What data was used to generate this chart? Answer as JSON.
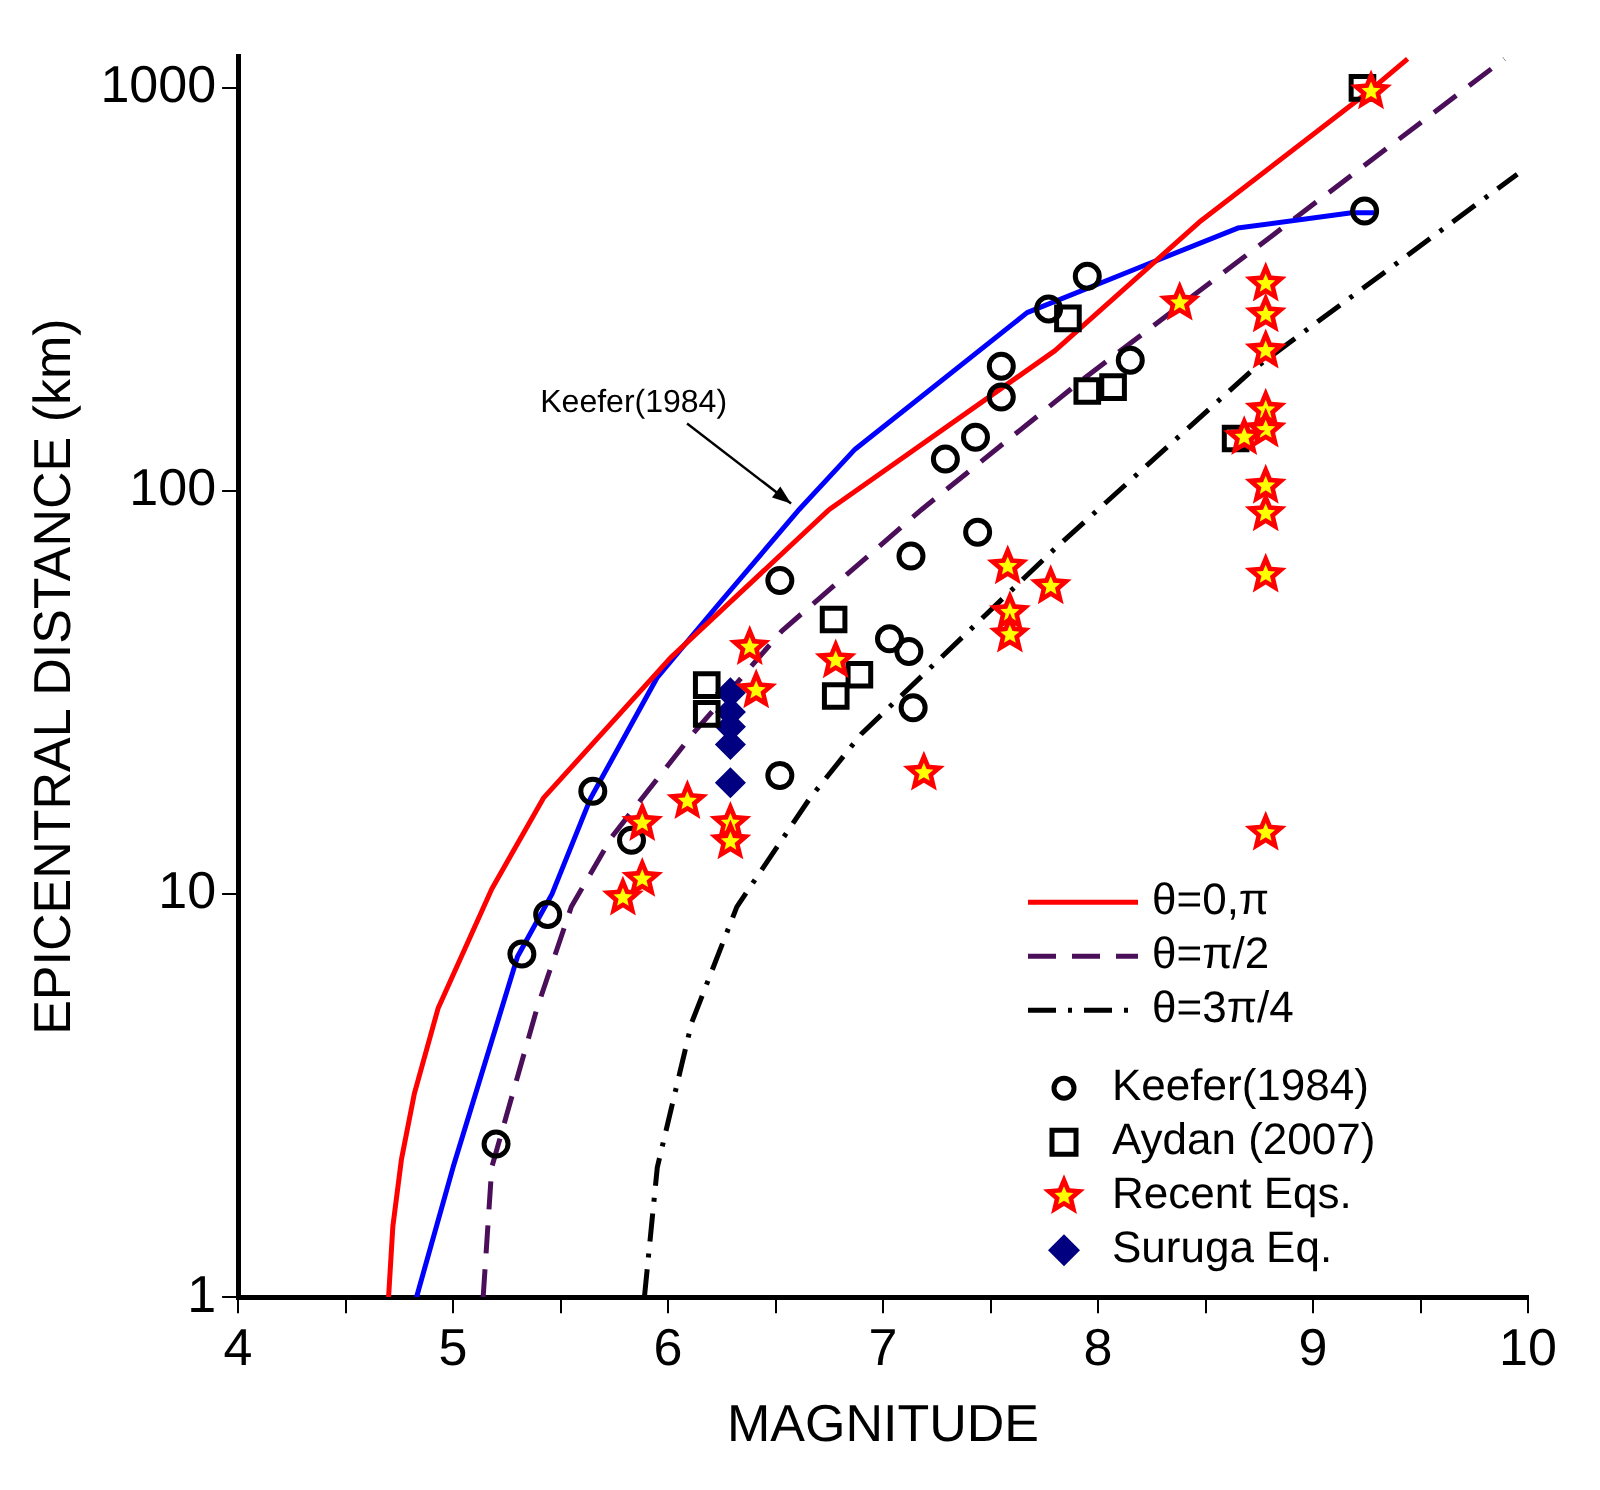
{
  "chart_data": {
    "type": "scatter",
    "xlabel": "MAGNITUDE",
    "ylabel": "EPICENTRAL DISTANCE (km)",
    "log": "y",
    "legend": "bottom right",
    "xlim": [
      4,
      10
    ],
    "ylim": [
      1,
      1200
    ],
    "xticks": [
      4,
      {
        "value": 4.5,
        "label": null
      },
      5,
      {
        "value": 5.5,
        "label": null
      },
      6,
      {
        "value": 6.5,
        "label": null
      },
      7,
      {
        "value": 7.5,
        "label": null
      },
      8,
      {
        "value": 8.5,
        "label": null
      },
      9,
      {
        "value": 9.5,
        "label": null
      },
      10
    ],
    "yticks": [
      1,
      10,
      100,
      1000
    ],
    "annotations": [
      {
        "text": "Keefer(1984)",
        "x": 6.6,
        "y": 90
      }
    ],
    "series": [
      {
        "name": "θ=0,π",
        "type": "line",
        "color": "#ff0000",
        "line_style": "solid",
        "marker": "none",
        "x": [
          4.7,
          4.72,
          4.76,
          4.82,
          4.93,
          5.18,
          5.42,
          6.01,
          6.75,
          7.8,
          8.47,
          9.27,
          9.44
        ],
        "values": [
          1,
          1.5,
          2.2,
          3.2,
          5.2,
          10.3,
          17.3,
          38.5,
          90,
          223,
          464,
          990,
          1180
        ]
      },
      {
        "type": "line",
        "color": "#0000ff",
        "line_style": "solid",
        "marker": "none",
        "x": [
          4.83,
          5.0,
          5.3,
          5.46,
          5.64,
          5.95,
          6.23,
          6.61,
          6.87,
          7.67,
          8.16,
          8.65,
          9.18,
          9.29
        ],
        "values": [
          1,
          2.1,
          7,
          10,
          17.3,
          34.5,
          52,
          90,
          127,
          277,
          353,
          449,
          490,
          490
        ]
      },
      {
        "name": "θ=π/2",
        "type": "line",
        "color": "#4b0f5a",
        "line_style": "dashed",
        "marker": "none",
        "x": [
          5.14,
          5.18,
          5.39,
          5.55,
          5.74,
          6.11,
          6.53,
          7.18,
          7.95,
          8.81,
          9.89
        ],
        "values": [
          1,
          2.1,
          5.2,
          9.3,
          13.9,
          24.8,
          45,
          90,
          193,
          430,
          1180
        ]
      },
      {
        "name": "θ=3π/4",
        "type": "line",
        "color": "#000000",
        "line_style": "dashdot",
        "marker": "none",
        "x": [
          5.89,
          5.95,
          6.11,
          6.32,
          6.66,
          6.9,
          7.8,
          8.72,
          9.95
        ],
        "values": [
          1,
          2.1,
          4.8,
          9.3,
          17.3,
          25,
          72,
          200,
          611
        ]
      },
      {
        "name": "Keefer(1984)",
        "color": "#000000",
        "marker": "circle",
        "x": [
          5.2,
          5.32,
          5.44,
          5.65,
          5.83,
          6.52,
          6.52,
          7.13,
          7.03,
          7.12,
          7.14,
          7.44,
          7.29,
          7.43,
          7.55,
          7.55,
          7.77,
          7.95,
          8.15,
          9.24
        ],
        "values": [
          2.4,
          7.1,
          8.9,
          18,
          13.6,
          19.7,
          60,
          69,
          43,
          40,
          29,
          79,
          120,
          136,
          171,
          204,
          283,
          341,
          211,
          495
        ]
      },
      {
        "name": "Aydan (2007)",
        "color": "#000000",
        "marker": "square",
        "x": [
          6.18,
          6.18,
          6.77,
          6.78,
          6.89,
          7.86,
          7.95,
          8.07,
          8.64,
          9.23
        ],
        "values": [
          33,
          28,
          48,
          31,
          35,
          268,
          177,
          181,
          135,
          1000
        ]
      },
      {
        "name": "Recent Eqs.",
        "color": "#ff0000",
        "marker": "star",
        "x": [
          9.27,
          8.78,
          8.78,
          8.78,
          8.78,
          8.78,
          8.68,
          8.78,
          8.78,
          8.78,
          8.78,
          8.38,
          7.58,
          7.78,
          7.59,
          7.59,
          7.19,
          6.38,
          6.41,
          6.78,
          6.09,
          5.88,
          6.29,
          6.29,
          5.88,
          5.79
        ],
        "values": [
          980,
          327,
          274,
          223,
          159,
          142,
          136,
          103,
          88,
          62,
          14.2,
          293,
          65,
          58,
          50,
          44,
          20,
          41,
          32,
          38,
          17,
          15,
          15,
          13.5,
          10.9,
          9.8
        ]
      },
      {
        "name": "Suruga Eq.",
        "color": "#000080",
        "marker": "diamond",
        "x": [
          6.29,
          6.29,
          6.29,
          6.29,
          6.29
        ],
        "values": [
          31.6,
          28.3,
          26,
          23.5,
          18.9
        ]
      }
    ]
  }
}
